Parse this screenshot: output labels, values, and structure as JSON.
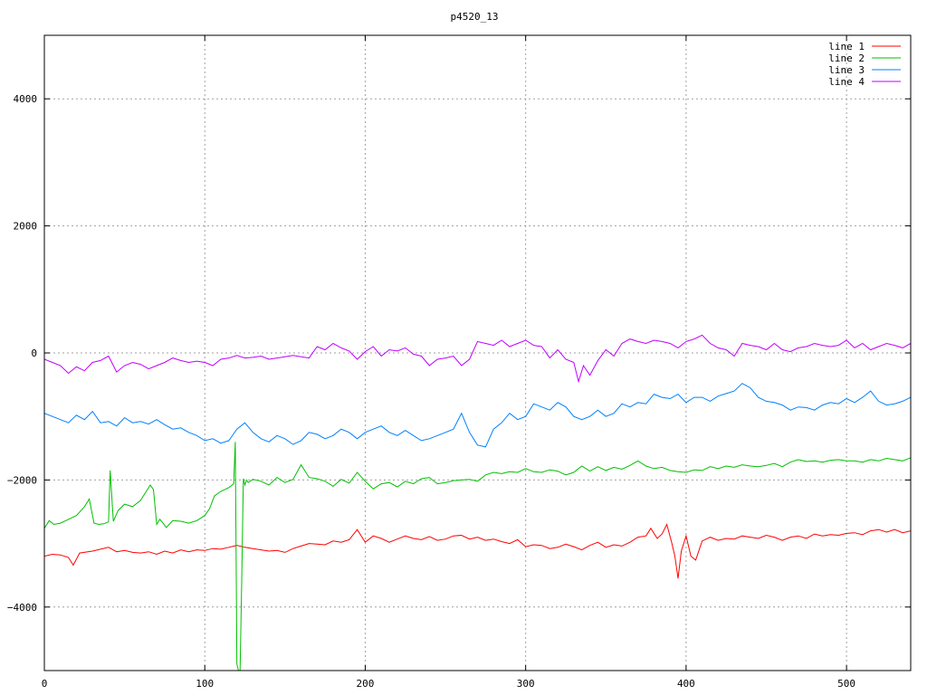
{
  "chart_data": {
    "type": "line",
    "title": "p4520_13",
    "xlabel": "",
    "ylabel": "",
    "xlim": [
      0,
      540
    ],
    "ylim": [
      -5000,
      5000
    ],
    "x_ticks": [
      0,
      100,
      200,
      300,
      400,
      500
    ],
    "y_ticks": [
      -4000,
      -2000,
      0,
      2000,
      4000
    ],
    "grid": true,
    "legend_position": "top-right",
    "series": [
      {
        "name": "line 1",
        "color": "#ff0000",
        "x": [
          0,
          5,
          10,
          15,
          18,
          22,
          30,
          35,
          40,
          45,
          50,
          55,
          60,
          65,
          70,
          75,
          80,
          85,
          90,
          95,
          100,
          105,
          110,
          115,
          120,
          125,
          130,
          135,
          140,
          145,
          150,
          155,
          160,
          165,
          170,
          175,
          180,
          185,
          190,
          195,
          200,
          205,
          210,
          215,
          220,
          225,
          230,
          235,
          240,
          245,
          250,
          255,
          260,
          265,
          270,
          275,
          280,
          285,
          290,
          295,
          300,
          305,
          310,
          315,
          320,
          325,
          330,
          335,
          340,
          345,
          350,
          355,
          360,
          365,
          370,
          375,
          378,
          382,
          385,
          388,
          391,
          393,
          395,
          397,
          400,
          403,
          406,
          410,
          415,
          420,
          425,
          430,
          435,
          440,
          445,
          450,
          455,
          460,
          465,
          470,
          475,
          480,
          485,
          490,
          495,
          500,
          505,
          510,
          515,
          520,
          525,
          530,
          535,
          540
        ],
        "values": [
          -3200,
          -3170,
          -3180,
          -3220,
          -3340,
          -3150,
          -3120,
          -3090,
          -3060,
          -3130,
          -3110,
          -3140,
          -3150,
          -3130,
          -3170,
          -3120,
          -3150,
          -3100,
          -3130,
          -3100,
          -3110,
          -3080,
          -3090,
          -3060,
          -3030,
          -3060,
          -3080,
          -3100,
          -3120,
          -3110,
          -3140,
          -3080,
          -3040,
          -3000,
          -3010,
          -3020,
          -2960,
          -2980,
          -2940,
          -2780,
          -2980,
          -2880,
          -2920,
          -2980,
          -2930,
          -2880,
          -2920,
          -2940,
          -2890,
          -2950,
          -2930,
          -2880,
          -2870,
          -2930,
          -2900,
          -2950,
          -2930,
          -2970,
          -3000,
          -2940,
          -3050,
          -3020,
          -3030,
          -3080,
          -3060,
          -3010,
          -3050,
          -3100,
          -3030,
          -2980,
          -3060,
          -3020,
          -3040,
          -2980,
          -2900,
          -2880,
          -2760,
          -2920,
          -2850,
          -2700,
          -2980,
          -3200,
          -3550,
          -3120,
          -2880,
          -3200,
          -3260,
          -2960,
          -2900,
          -2950,
          -2920,
          -2930,
          -2880,
          -2900,
          -2920,
          -2870,
          -2900,
          -2950,
          -2900,
          -2880,
          -2920,
          -2850,
          -2880,
          -2860,
          -2870,
          -2840,
          -2830,
          -2860,
          -2800,
          -2780,
          -2820,
          -2780,
          -2830,
          -2800
        ]
      },
      {
        "name": "line 2",
        "color": "#00c000",
        "x": [
          0,
          3,
          6,
          10,
          15,
          20,
          25,
          28,
          31,
          34,
          37,
          40,
          41,
          43,
          46,
          50,
          55,
          60,
          63,
          66,
          68,
          70,
          72,
          74,
          76,
          80,
          85,
          90,
          95,
          100,
          103,
          106,
          110,
          115,
          118,
          119,
          120,
          121,
          122,
          123,
          124,
          125,
          126,
          127,
          130,
          135,
          140,
          145,
          150,
          155,
          160,
          165,
          170,
          175,
          180,
          185,
          190,
          195,
          200,
          205,
          210,
          215,
          220,
          225,
          230,
          235,
          240,
          245,
          250,
          255,
          260,
          265,
          270,
          275,
          280,
          285,
          290,
          295,
          300,
          305,
          310,
          315,
          320,
          325,
          330,
          335,
          340,
          345,
          350,
          355,
          360,
          365,
          370,
          375,
          380,
          385,
          390,
          395,
          400,
          405,
          410,
          415,
          420,
          425,
          430,
          435,
          440,
          445,
          450,
          455,
          460,
          465,
          470,
          475,
          480,
          485,
          490,
          495,
          500,
          505,
          510,
          515,
          520,
          525,
          530,
          535,
          540
        ],
        "values": [
          -2760,
          -2640,
          -2700,
          -2680,
          -2620,
          -2560,
          -2420,
          -2300,
          -2680,
          -2700,
          -2690,
          -2660,
          -1850,
          -2650,
          -2480,
          -2380,
          -2420,
          -2320,
          -2200,
          -2080,
          -2150,
          -2700,
          -2620,
          -2680,
          -2750,
          -2640,
          -2650,
          -2680,
          -2640,
          -2560,
          -2450,
          -2250,
          -2180,
          -2120,
          -2060,
          -1400,
          -4900,
          -5000,
          -5000,
          -3600,
          -1980,
          -2080,
          -2000,
          -2040,
          -1990,
          -2020,
          -2080,
          -1960,
          -2040,
          -1990,
          -1760,
          -1960,
          -1980,
          -2020,
          -2100,
          -1990,
          -2050,
          -1880,
          -2020,
          -2140,
          -2060,
          -2040,
          -2110,
          -2020,
          -2060,
          -1980,
          -1960,
          -2060,
          -2040,
          -2010,
          -2000,
          -1990,
          -2020,
          -1920,
          -1880,
          -1900,
          -1870,
          -1880,
          -1820,
          -1870,
          -1880,
          -1840,
          -1860,
          -1920,
          -1880,
          -1780,
          -1860,
          -1790,
          -1850,
          -1800,
          -1830,
          -1770,
          -1700,
          -1780,
          -1820,
          -1800,
          -1850,
          -1870,
          -1880,
          -1840,
          -1850,
          -1790,
          -1820,
          -1780,
          -1800,
          -1760,
          -1780,
          -1790,
          -1770,
          -1740,
          -1790,
          -1720,
          -1680,
          -1710,
          -1700,
          -1720,
          -1690,
          -1680,
          -1700,
          -1700,
          -1720,
          -1680,
          -1700,
          -1660,
          -1680,
          -1700,
          -1650
        ]
      },
      {
        "name": "line 3",
        "color": "#0080ff",
        "x": [
          0,
          5,
          10,
          15,
          20,
          25,
          30,
          35,
          40,
          45,
          50,
          55,
          60,
          65,
          70,
          75,
          80,
          85,
          90,
          95,
          100,
          105,
          110,
          115,
          120,
          125,
          130,
          135,
          140,
          145,
          150,
          155,
          160,
          165,
          170,
          175,
          180,
          185,
          190,
          195,
          200,
          205,
          210,
          215,
          220,
          225,
          230,
          235,
          240,
          245,
          250,
          255,
          260,
          265,
          270,
          275,
          280,
          285,
          290,
          295,
          300,
          305,
          310,
          315,
          320,
          325,
          330,
          335,
          340,
          345,
          350,
          355,
          360,
          365,
          370,
          375,
          380,
          385,
          390,
          395,
          400,
          405,
          410,
          415,
          420,
          425,
          430,
          435,
          440,
          445,
          450,
          455,
          460,
          465,
          470,
          475,
          480,
          485,
          490,
          495,
          500,
          505,
          510,
          515,
          520,
          525,
          530,
          535,
          540
        ],
        "values": [
          -950,
          -1000,
          -1050,
          -1100,
          -980,
          -1050,
          -920,
          -1100,
          -1080,
          -1150,
          -1020,
          -1100,
          -1080,
          -1120,
          -1050,
          -1130,
          -1200,
          -1180,
          -1250,
          -1300,
          -1380,
          -1350,
          -1420,
          -1380,
          -1200,
          -1100,
          -1250,
          -1350,
          -1400,
          -1300,
          -1350,
          -1440,
          -1380,
          -1250,
          -1280,
          -1350,
          -1300,
          -1200,
          -1250,
          -1350,
          -1250,
          -1200,
          -1150,
          -1250,
          -1300,
          -1220,
          -1300,
          -1380,
          -1350,
          -1300,
          -1250,
          -1200,
          -950,
          -1250,
          -1450,
          -1480,
          -1200,
          -1100,
          -950,
          -1050,
          -1000,
          -800,
          -850,
          -900,
          -780,
          -850,
          -1000,
          -1050,
          -1000,
          -900,
          -1000,
          -950,
          -800,
          -850,
          -780,
          -800,
          -650,
          -700,
          -720,
          -650,
          -780,
          -700,
          -700,
          -760,
          -680,
          -640,
          -600,
          -480,
          -550,
          -700,
          -760,
          -780,
          -820,
          -900,
          -850,
          -860,
          -900,
          -820,
          -780,
          -800,
          -720,
          -780,
          -700,
          -600,
          -760,
          -820,
          -800,
          -760,
          -700
        ]
      },
      {
        "name": "line 4",
        "color": "#c000ff",
        "x": [
          0,
          5,
          10,
          15,
          20,
          25,
          30,
          35,
          40,
          45,
          50,
          55,
          60,
          65,
          70,
          75,
          80,
          85,
          90,
          95,
          100,
          105,
          110,
          115,
          120,
          125,
          130,
          135,
          140,
          145,
          150,
          155,
          160,
          165,
          170,
          175,
          180,
          185,
          190,
          195,
          200,
          205,
          210,
          215,
          220,
          225,
          230,
          235,
          240,
          245,
          250,
          255,
          260,
          265,
          270,
          275,
          280,
          285,
          290,
          295,
          300,
          305,
          310,
          315,
          320,
          325,
          330,
          333,
          336,
          340,
          345,
          350,
          355,
          360,
          365,
          370,
          375,
          380,
          385,
          390,
          395,
          400,
          405,
          410,
          415,
          420,
          425,
          430,
          435,
          440,
          445,
          450,
          455,
          460,
          465,
          470,
          475,
          480,
          485,
          490,
          495,
          500,
          505,
          510,
          515,
          520,
          525,
          530,
          535,
          540
        ],
        "values": [
          -100,
          -150,
          -200,
          -320,
          -220,
          -280,
          -150,
          -120,
          -50,
          -300,
          -200,
          -150,
          -180,
          -250,
          -200,
          -150,
          -80,
          -120,
          -150,
          -130,
          -150,
          -200,
          -100,
          -80,
          -40,
          -80,
          -70,
          -50,
          -100,
          -80,
          -60,
          -40,
          -60,
          -80,
          100,
          50,
          150,
          80,
          30,
          -100,
          20,
          100,
          -50,
          50,
          30,
          80,
          -20,
          -50,
          -200,
          -100,
          -80,
          -50,
          -200,
          -100,
          180,
          150,
          120,
          200,
          100,
          150,
          200,
          120,
          100,
          -80,
          50,
          -100,
          -150,
          -450,
          -200,
          -350,
          -120,
          50,
          -50,
          150,
          220,
          180,
          150,
          200,
          180,
          150,
          80,
          180,
          220,
          280,
          150,
          80,
          50,
          -50,
          150,
          120,
          100,
          50,
          150,
          50,
          20,
          80,
          100,
          150,
          120,
          100,
          120,
          200,
          80,
          150,
          50,
          100,
          150,
          120,
          80,
          150
        ]
      }
    ]
  }
}
